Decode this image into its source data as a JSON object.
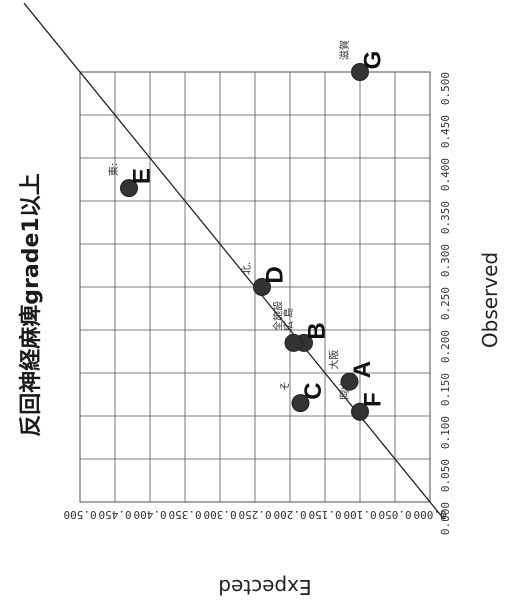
{
  "chart_data": {
    "type": "scatter",
    "title": "反回神経麻痺grade1以上",
    "xlabel": "Observed",
    "ylabel": "Expected",
    "xlim": [
      0,
      0.5
    ],
    "ylim": [
      0,
      0.5
    ],
    "xticks": [
      "0.000",
      "0.050",
      "0.100",
      "0.150",
      "0.200",
      "0.250",
      "0.300",
      "0.350",
      "0.400",
      "0.450",
      "0.500"
    ],
    "yticks": [
      "0.000",
      "0.050",
      "0.100",
      "0.150",
      "0.200",
      "0.250",
      "0.300",
      "0.350",
      "0.400",
      "0.450",
      "0.500"
    ],
    "grid": true,
    "reference_line": "y = x",
    "points": [
      {
        "id": "E",
        "x": 0.365,
        "y": 0.43,
        "small_label": "東:"
      },
      {
        "id": "G",
        "x": 0.5,
        "y": 0.1,
        "small_label": "滋賀"
      },
      {
        "id": "D",
        "x": 0.25,
        "y": 0.24,
        "small_label": "北."
      },
      {
        "id": "B",
        "x": 0.185,
        "y": 0.18,
        "small_label": "広 島"
      },
      {
        "id": "all",
        "x": 0.185,
        "y": 0.195,
        "small_label": "全施設"
      },
      {
        "id": "A",
        "x": 0.14,
        "y": 0.115,
        "small_label": "大阪"
      },
      {
        "id": "C",
        "x": 0.115,
        "y": 0.185,
        "small_label": "そ"
      },
      {
        "id": "F",
        "x": 0.105,
        "y": 0.1,
        "small_label": "岡山"
      }
    ]
  }
}
